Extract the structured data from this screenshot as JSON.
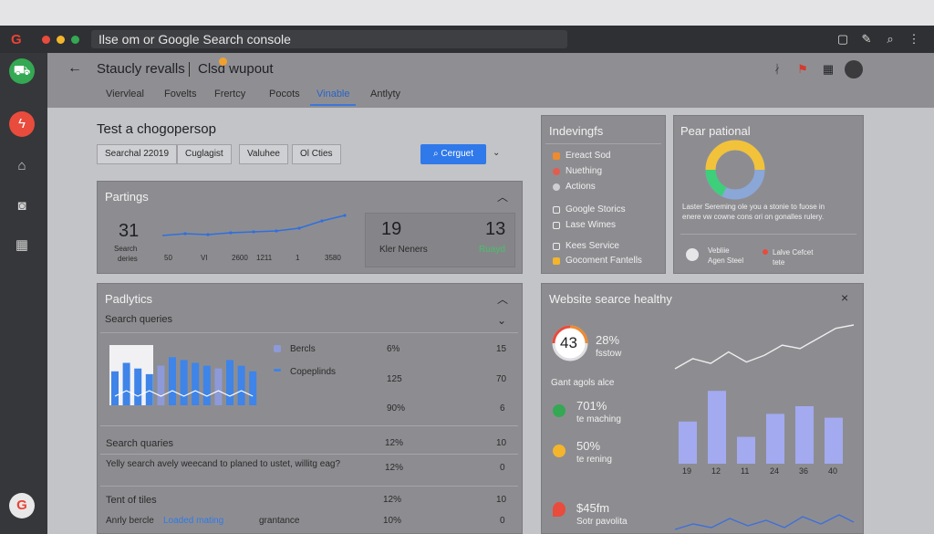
{
  "browser": {
    "address": "Ilse om or Google Search console",
    "colors": {
      "red": "#e94b3c",
      "yellow": "#f3b52b",
      "green": "#34a853"
    }
  },
  "rail": {
    "icons": [
      "cart-icon",
      "flash-icon",
      "home-icon",
      "camera-icon",
      "grid-icon",
      "google-icon"
    ]
  },
  "header": {
    "back": "←",
    "title": "Staucly revalls",
    "subtitle": "Clsd wupout",
    "tabs": [
      "Viervleal",
      "Fovelts",
      "Frertcy",
      "Pocots",
      "Vinable",
      "Antlyty"
    ],
    "active_tab": 4
  },
  "filters": {
    "title": "Test a chogopersop",
    "chips": [
      "Searchal 22019",
      "Cuglagist",
      "Valuhee",
      "Ol Cties"
    ],
    "primary": "Cerguet"
  },
  "partings": {
    "title": "Partings",
    "left_number": "31",
    "left_label_1": "Search",
    "left_label_2": "deries",
    "x_labels": [
      "50",
      "VI",
      "2600",
      "1211",
      "1",
      "3580"
    ],
    "stat_a": "19",
    "stat_a_label": "Kler Neners",
    "stat_b": "13",
    "stat_b_label": "Ruayd"
  },
  "indexing": {
    "title": "Indevingfs",
    "items": [
      {
        "icon": "flame-icon",
        "label": "Ereact Sod"
      },
      {
        "icon": "gear-icon",
        "label": "Nuething"
      },
      {
        "icon": "circle-icon",
        "label": "Actions"
      },
      {
        "icon": "doc-icon",
        "label": "Google Storics"
      },
      {
        "icon": "list-icon",
        "label": "Lase Wimes"
      },
      {
        "icon": "doc-icon",
        "label": "Kees Service"
      },
      {
        "icon": "yellow-square-icon",
        "label": "Gocoment Fantells"
      }
    ]
  },
  "pear": {
    "title": "Pear pational",
    "desc_1": "Laster Sereming ole you a stonie to fuose in",
    "desc_2": "enere vw cowne cons ori on gonalles rulery.",
    "legend_a_1": "Vebliie",
    "legend_a_2": "Agen Steel",
    "legend_b_1": "Lalve Cefcet",
    "legend_b_2": "tete",
    "donut_colors": [
      "#f2c23a",
      "#3ecf7a",
      "#8aa7d8"
    ]
  },
  "analytics": {
    "title": "Padlytics",
    "subtitle": "Search queries",
    "legend": [
      "Bercls",
      "Copeplinds"
    ],
    "rows": [
      {
        "label": "",
        "pct": "6%",
        "value": "15"
      },
      {
        "label": "",
        "pct": "125",
        "value": "70"
      },
      {
        "label": "",
        "pct": "90%",
        "value": "6"
      },
      {
        "label": "Search quaries",
        "pct": "12%",
        "value": "10"
      },
      {
        "label": "Yelly search avely weecand to planed to ustet, willitg eag?",
        "pct": "12%",
        "value": "0"
      },
      {
        "label": "Tent of tiles",
        "pct": "12%",
        "value": "10"
      },
      {
        "label": "Anrly bercle",
        "pct": "10%",
        "value": "0"
      }
    ],
    "highlight": "Loaded mating",
    "tail": "grantance",
    "bar_values": [
      60,
      75,
      65,
      55,
      70,
      85,
      80,
      75,
      70,
      65,
      80,
      70,
      60
    ],
    "bar_colors": [
      "#3f84e8",
      "#8d9ad9"
    ]
  },
  "health": {
    "title": "Website searce healthy",
    "close": "×",
    "score": "43",
    "score_pct": "28%",
    "score_label": "fsstow",
    "section": "Gant agols alce",
    "stat_1": "701%",
    "stat_1_label": "te maching",
    "stat_2": "50%",
    "stat_2_label": "te rening",
    "stat_3": "$45fm",
    "stat_3_label": "Sotr pavolita",
    "bar_labels": [
      "19",
      "12",
      "11",
      "24",
      "36",
      "40"
    ],
    "bar_values": [
      55,
      95,
      35,
      65,
      75,
      60
    ],
    "line_values": [
      20,
      35,
      28,
      45,
      30,
      40,
      55,
      50,
      65,
      80,
      85
    ]
  }
}
